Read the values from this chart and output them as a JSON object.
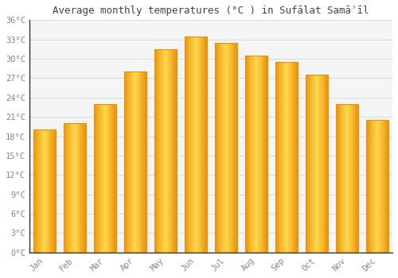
{
  "title": "Average monthly temperatures (°C ) in Sufālat Samāʾīl",
  "months": [
    "Jan",
    "Feb",
    "Mar",
    "Apr",
    "May",
    "Jun",
    "Jul",
    "Aug",
    "Sep",
    "Oct",
    "Nov",
    "Dec"
  ],
  "values": [
    19.0,
    20.0,
    23.0,
    28.0,
    31.5,
    33.5,
    32.5,
    30.5,
    29.5,
    27.5,
    23.0,
    20.5
  ],
  "bar_color_center": "#FFD84D",
  "bar_color_edge": "#E8920A",
  "ylim": [
    0,
    36
  ],
  "yticks": [
    0,
    3,
    6,
    9,
    12,
    15,
    18,
    21,
    24,
    27,
    30,
    33,
    36
  ],
  "background_color": "#FFFFFF",
  "plot_bg_color": "#F5F5F5",
  "grid_color": "#DDDDDD",
  "title_fontsize": 9,
  "tick_fontsize": 7.5,
  "tick_color": "#888888",
  "font_family": "monospace",
  "bar_width": 0.75
}
